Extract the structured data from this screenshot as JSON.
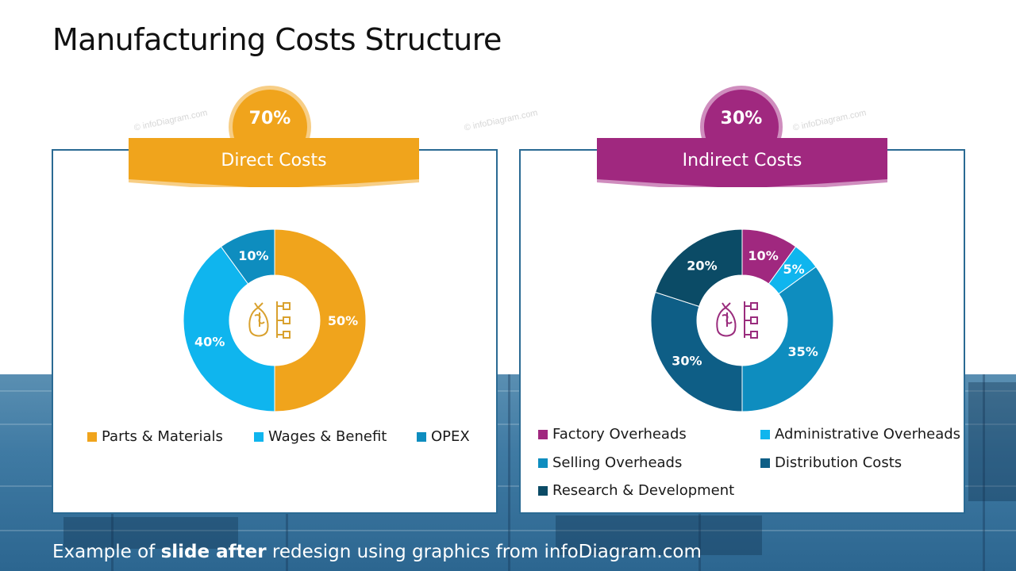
{
  "slide": {
    "title": "Manufacturing Costs Structure",
    "watermark": "© infoDiagram.com",
    "caption_pre": "Example of ",
    "caption_bold": "slide after",
    "caption_post": " redesign using graphics from infoDiagram.com"
  },
  "colors": {
    "orange": "#F0A41C",
    "orange_light": "#F7CE86",
    "purple": "#A0287F",
    "purple_light": "#CF8DBE",
    "cyan": "#0FB5EE",
    "blue": "#0E8DBF",
    "teal_dark": "#0E5E86",
    "navy": "#0B4B66",
    "border": "#2A6A93"
  },
  "chart_data": [
    {
      "type": "pie",
      "variant": "donut",
      "title": "Direct Costs",
      "share": "70%",
      "center_icon": "money-bag-structure-icon",
      "series": [
        {
          "name": "Parts & Materials",
          "value": 50,
          "label": "50%",
          "color": "#F0A41C"
        },
        {
          "name": "Wages & Benefit",
          "value": 40,
          "label": "40%",
          "color": "#0FB5EE"
        },
        {
          "name": "OPEX",
          "value": 10,
          "label": "10%",
          "color": "#0E8DBF"
        }
      ],
      "legend_position": "bottom"
    },
    {
      "type": "pie",
      "variant": "donut",
      "title": "Indirect Costs",
      "share": "30%",
      "center_icon": "money-bag-structure-icon",
      "series": [
        {
          "name": "Factory Overheads",
          "value": 10,
          "label": "10%",
          "color": "#A0287F"
        },
        {
          "name": "Administrative Overheads",
          "value": 5,
          "label": "5%",
          "color": "#0FB5EE"
        },
        {
          "name": "Selling Overheads",
          "value": 35,
          "label": "35%",
          "color": "#0E8DBF"
        },
        {
          "name": "Distribution Costs",
          "value": 30,
          "label": "30%",
          "color": "#0E5E86"
        },
        {
          "name": "Research & Development",
          "value": 20,
          "label": "20%",
          "color": "#0B4B66"
        }
      ],
      "legend_position": "bottom"
    }
  ]
}
